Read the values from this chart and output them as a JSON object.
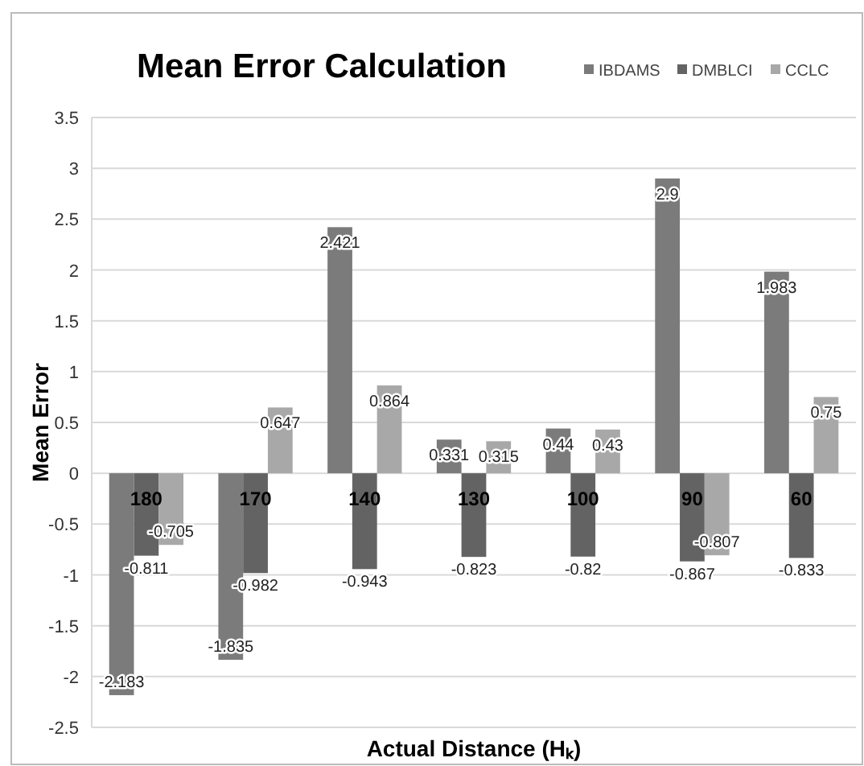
{
  "chart_data": {
    "type": "bar",
    "title": "Mean Error Calculation",
    "xlabel": "Actual Distance (Hₖ)",
    "ylabel": "Mean Error",
    "categories": [
      "180",
      "170",
      "140",
      "130",
      "100",
      "90",
      "60"
    ],
    "series": [
      {
        "name": "IBDAMS",
        "color": "#7b7b7b",
        "values": [
          -2.183,
          -1.835,
          2.421,
          0.331,
          0.44,
          2.9,
          1.983
        ]
      },
      {
        "name": "DMBLCI",
        "color": "#636363",
        "values": [
          -0.811,
          -0.982,
          -0.943,
          -0.823,
          -0.82,
          -0.867,
          -0.833
        ]
      },
      {
        "name": "CCLC",
        "color": "#a8a8a8",
        "values": [
          -0.705,
          0.647,
          0.864,
          0.315,
          0.43,
          -0.807,
          0.75
        ]
      }
    ],
    "ylim": [
      -2.5,
      3.5
    ],
    "yticks": [
      -2.5,
      -2,
      -1.5,
      -1,
      -0.5,
      0,
      0.5,
      1,
      1.5,
      2,
      2.5,
      3,
      3.5
    ],
    "grid": "y",
    "legend": "top right",
    "data_labels": true
  }
}
